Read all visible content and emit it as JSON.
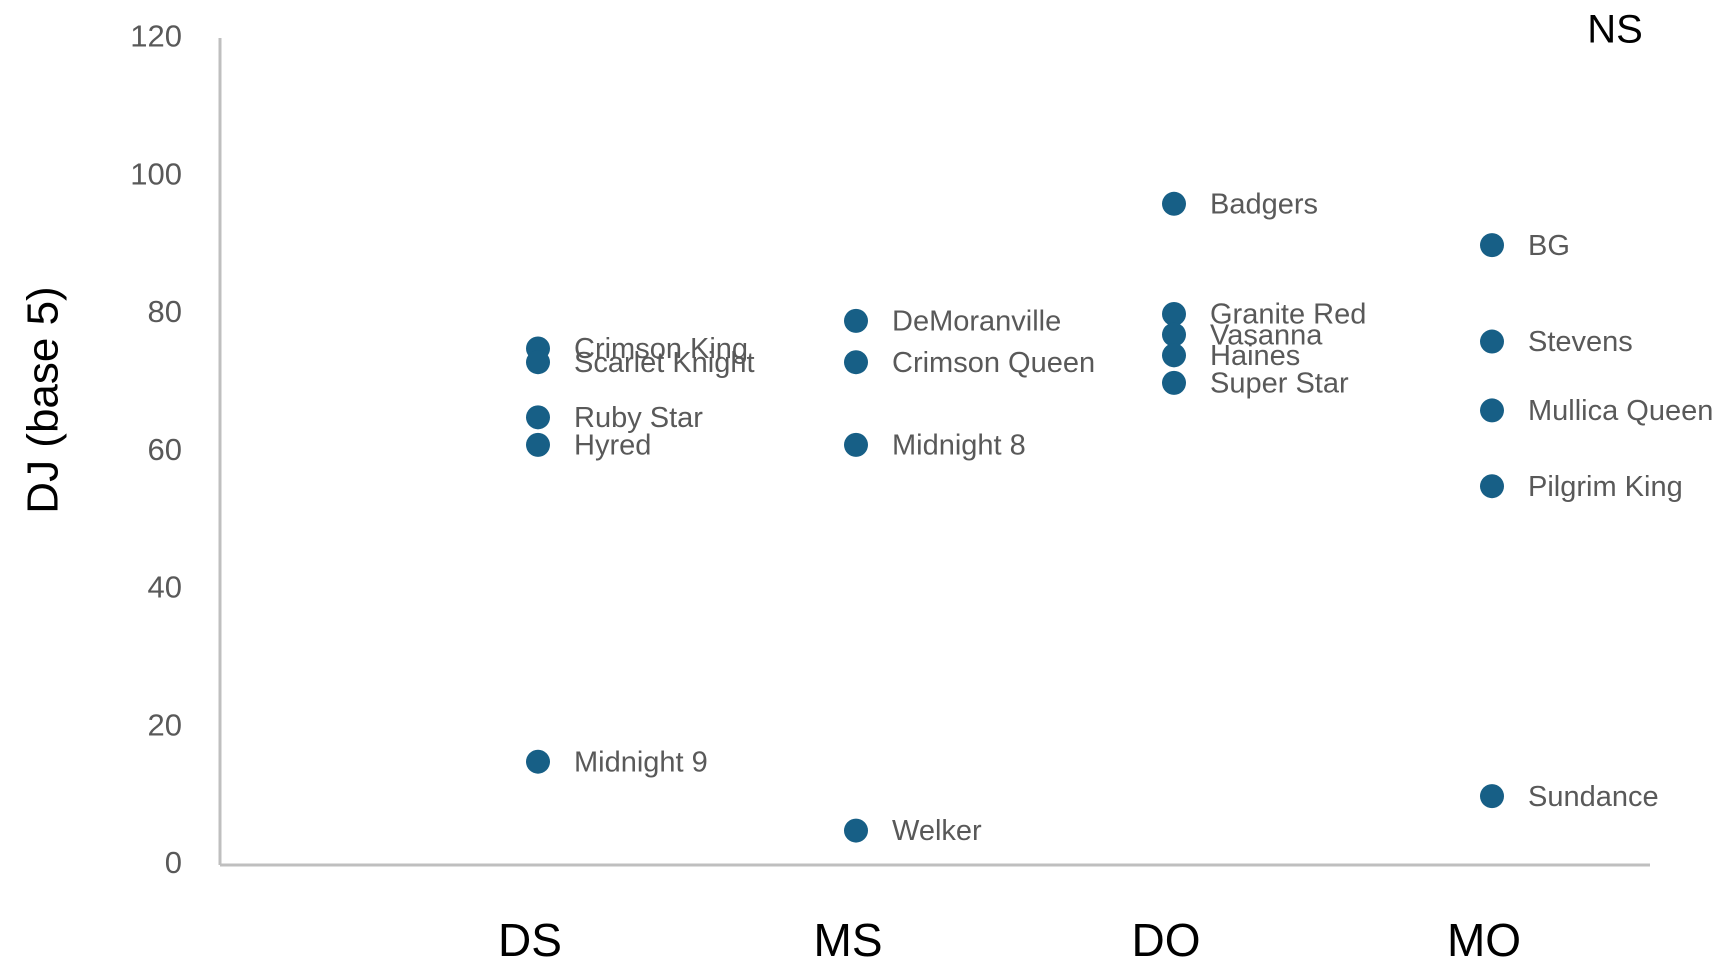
{
  "chart_data": {
    "type": "scatter",
    "annotation": "NS",
    "y_label": "DJ (base 5)",
    "categories": [
      "DS",
      "MS",
      "DO",
      "MO"
    ],
    "color": "#175f86",
    "ylim": [
      0,
      120
    ],
    "yticks": [
      0,
      20,
      40,
      60,
      80,
      100,
      120
    ],
    "grid": false,
    "points": [
      {
        "category": "DS",
        "label": "Crimson King",
        "value": 75
      },
      {
        "category": "DS",
        "label": "Scarlet Knight",
        "value": 73
      },
      {
        "category": "DS",
        "label": "Ruby Star",
        "value": 65
      },
      {
        "category": "DS",
        "label": "Hyred",
        "value": 61
      },
      {
        "category": "DS",
        "label": "Midnight 9",
        "value": 15
      },
      {
        "category": "MS",
        "label": "DeMoranville",
        "value": 79
      },
      {
        "category": "MS",
        "label": "Crimson Queen",
        "value": 73
      },
      {
        "category": "MS",
        "label": "Midnight 8",
        "value": 61
      },
      {
        "category": "MS",
        "label": "Welker",
        "value": 5
      },
      {
        "category": "DO",
        "label": "Badgers",
        "value": 96
      },
      {
        "category": "DO",
        "label": "Granite Red",
        "value": 80
      },
      {
        "category": "DO",
        "label": "Vasanna",
        "value": 77
      },
      {
        "category": "DO",
        "label": "Haines",
        "value": 74
      },
      {
        "category": "DO",
        "label": "Super Star",
        "value": 70
      },
      {
        "category": "MO",
        "label": "BG",
        "value": 90
      },
      {
        "category": "MO",
        "label": "Stevens",
        "value": 76
      },
      {
        "category": "MO",
        "label": "Mullica Queen",
        "value": 66
      },
      {
        "category": "MO",
        "label": "Pilgrim King",
        "value": 55
      },
      {
        "category": "MO",
        "label": "Sundance",
        "value": 10
      }
    ]
  }
}
